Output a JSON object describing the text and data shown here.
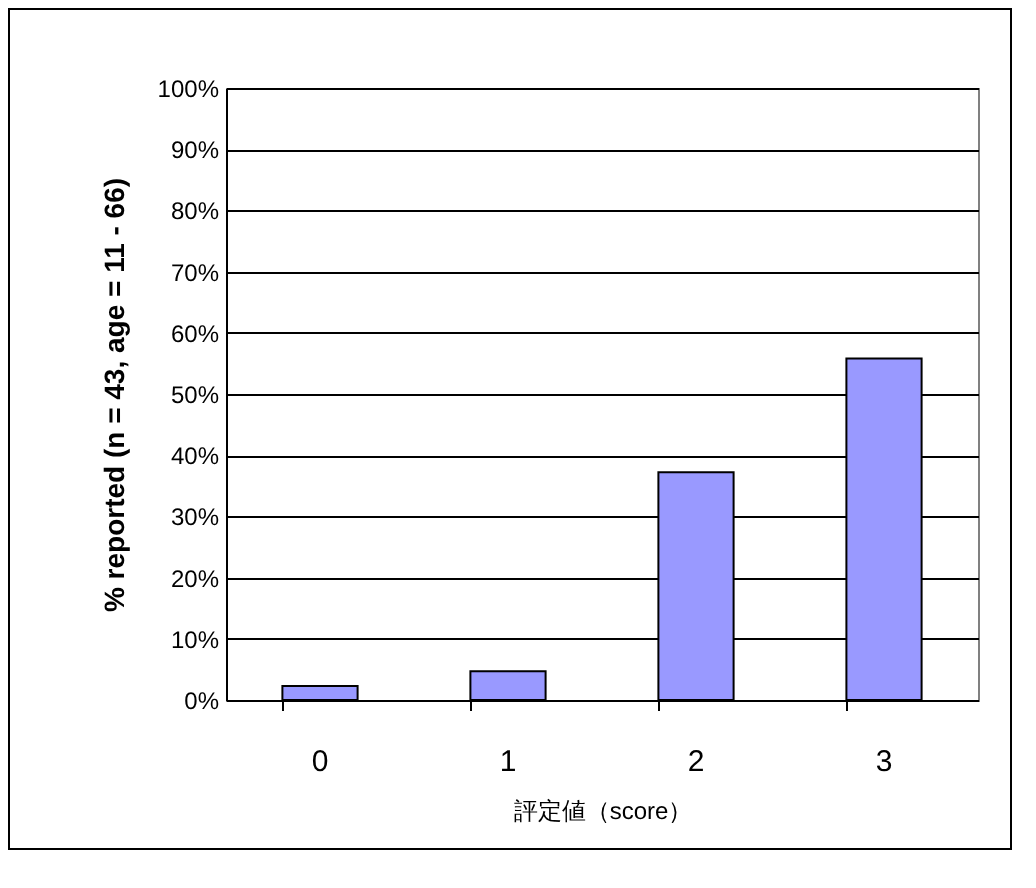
{
  "chart_data": {
    "type": "bar",
    "xlabel": "評定値（score）",
    "ylabel": "% reported (n = 43, age = 11 - 66)",
    "categories": [
      "0",
      "1",
      "2",
      "3"
    ],
    "values": [
      2.3,
      4.7,
      37.2,
      55.8
    ],
    "color": "#9999ff",
    "ylim": [
      0,
      100
    ],
    "yticks": [
      {
        "value": 0,
        "label": "0%"
      },
      {
        "value": 10,
        "label": "10%"
      },
      {
        "value": 20,
        "label": "20%"
      },
      {
        "value": 30,
        "label": "30%"
      },
      {
        "value": 40,
        "label": "40%"
      },
      {
        "value": 50,
        "label": "50%"
      },
      {
        "value": 60,
        "label": "60%"
      },
      {
        "value": 70,
        "label": "70%"
      },
      {
        "value": 80,
        "label": "80%"
      },
      {
        "value": 90,
        "label": "90%"
      },
      {
        "value": 100,
        "label": "100%"
      }
    ],
    "grid": "y"
  }
}
